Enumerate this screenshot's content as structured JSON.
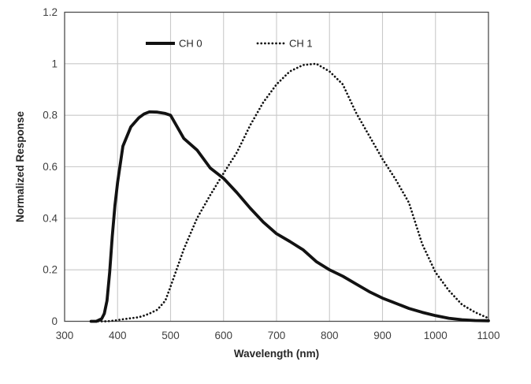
{
  "chart_data": {
    "type": "line",
    "title": "",
    "xlabel": "Wavelength (nm)",
    "ylabel": "Normalized Response",
    "xlim": [
      300,
      1100
    ],
    "ylim": [
      0,
      1.2
    ],
    "xticks": [
      300,
      400,
      500,
      600,
      700,
      800,
      900,
      1000,
      1100
    ],
    "xtick_labels": [
      "300",
      "400",
      "500",
      "600",
      "700",
      "800",
      "900",
      "1000",
      "1100"
    ],
    "yticks": [
      0,
      0.2,
      0.4,
      0.6,
      0.8,
      1,
      1.2
    ],
    "ytick_labels": [
      "0",
      "0.2",
      "0.4",
      "0.6",
      "0.8",
      "1",
      "1.2"
    ],
    "grid": true,
    "legend_position": "top-inside",
    "x": [
      350,
      360,
      370,
      375,
      380,
      385,
      390,
      395,
      400,
      410,
      425,
      440,
      450,
      460,
      475,
      490,
      500,
      525,
      550,
      575,
      600,
      625,
      650,
      675,
      700,
      725,
      750,
      775,
      800,
      825,
      850,
      875,
      900,
      925,
      950,
      975,
      1000,
      1025,
      1050,
      1075,
      1100
    ],
    "series": [
      {
        "name": "CH 0",
        "line_style": "solid",
        "values": [
          0,
          0,
          0.01,
          0.03,
          0.08,
          0.19,
          0.33,
          0.45,
          0.54,
          0.68,
          0.755,
          0.79,
          0.805,
          0.813,
          0.812,
          0.807,
          0.8,
          0.71,
          0.665,
          0.595,
          0.555,
          0.5,
          0.44,
          0.385,
          0.34,
          0.31,
          0.278,
          0.232,
          0.2,
          0.175,
          0.145,
          0.115,
          0.09,
          0.07,
          0.05,
          0.035,
          0.022,
          0.012,
          0.006,
          0.003,
          0.002
        ]
      },
      {
        "name": "CH 1",
        "line_style": "dotted",
        "values": [
          0,
          0,
          0,
          0,
          0,
          0.001,
          0.002,
          0.003,
          0.005,
          0.008,
          0.012,
          0.016,
          0.022,
          0.03,
          0.045,
          0.08,
          0.135,
          0.28,
          0.4,
          0.49,
          0.575,
          0.655,
          0.76,
          0.85,
          0.92,
          0.97,
          0.995,
          1.0,
          0.97,
          0.92,
          0.81,
          0.72,
          0.63,
          0.55,
          0.46,
          0.3,
          0.19,
          0.12,
          0.065,
          0.035,
          0.012
        ]
      }
    ],
    "colors": {
      "background": "#ffffff",
      "gridline": "#c9c9c9",
      "plot_border": "#4d4d4d",
      "curve": "#121212",
      "tick_text": "#3f3f3f",
      "axis_title_text": "#262626"
    }
  }
}
